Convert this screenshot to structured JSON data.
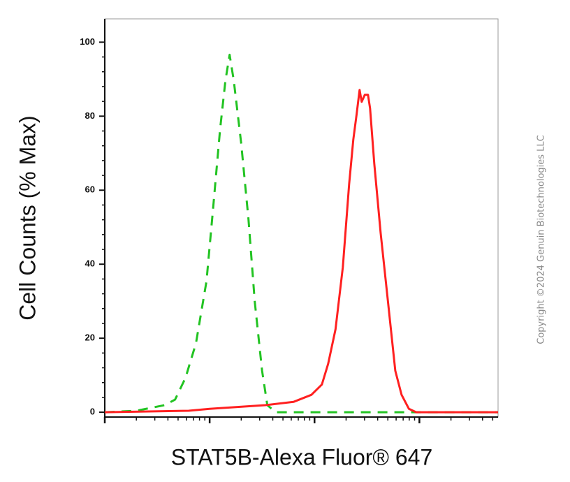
{
  "chart_data": {
    "type": "line",
    "x_label": "STAT5B-Alexa Fluor® 647",
    "y_label": "Cell Counts (% Max)",
    "watermark": "Copyright ©2024 Genuin Biotechnologies LLC",
    "xlim": [
      0,
      3.75
    ],
    "xticks": [
      0,
      1,
      2,
      3
    ],
    "x_log_minor_ticks": true,
    "ylim": [
      -1.3,
      106.3
    ],
    "yticks": [
      0,
      20,
      40,
      60,
      80,
      100
    ],
    "series": [
      {
        "color": "#22c322",
        "dashed": true,
        "x": [
          0,
          0.3,
          0.57,
          0.67,
          0.77,
          0.87,
          0.97,
          1.03,
          1.1,
          1.15,
          1.19,
          1.23,
          1.3,
          1.37,
          1.43,
          1.5,
          1.55,
          1.63,
          3.75
        ],
        "values": [
          0,
          0.4,
          1.9,
          3.4,
          9.3,
          18.7,
          35.4,
          54.1,
          76.5,
          89.6,
          96.6,
          89.6,
          72.8,
          52.2,
          29.9,
          11.2,
          1.9,
          0,
          0
        ]
      },
      {
        "color": "#ff2020",
        "dashed": false,
        "x": [
          0,
          0.8,
          1,
          1.53,
          1.8,
          1.97,
          2.07,
          2.13,
          2.2,
          2.27,
          2.33,
          2.37,
          2.4,
          2.43,
          2.45,
          2.48,
          2.51,
          2.53,
          2.57,
          2.63,
          2.7,
          2.77,
          2.83,
          2.9,
          2.97,
          3.75
        ],
        "values": [
          0,
          0.4,
          0.9,
          1.9,
          2.8,
          4.7,
          7.5,
          13.1,
          22.4,
          39.2,
          61.6,
          73.7,
          80.2,
          87.1,
          83.9,
          85.8,
          85.8,
          82.1,
          67.2,
          48.5,
          29.9,
          11.2,
          4.7,
          0.9,
          0,
          0
        ]
      }
    ]
  }
}
